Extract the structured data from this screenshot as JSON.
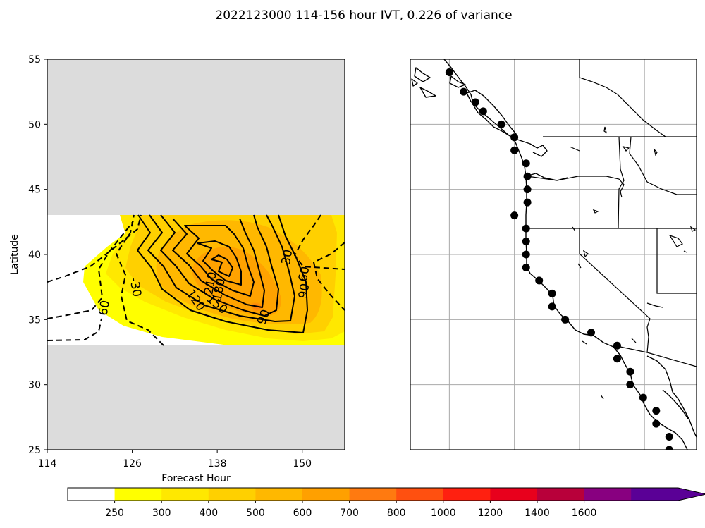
{
  "figure": {
    "title": "2022123000 114-156 hour IVT, 0.226 of variance"
  },
  "chart_data": [
    {
      "type": "heatmap",
      "title": "",
      "xlabel": "Forecast Hour",
      "ylabel": "Latitude",
      "xlim": [
        114,
        156
      ],
      "ylim": [
        25,
        55
      ],
      "xticks": [
        114,
        126,
        138,
        150
      ],
      "yticks": [
        25,
        30,
        35,
        40,
        45,
        50,
        55
      ],
      "masked_lat_ranges": [
        [
          25,
          33
        ],
        [
          43,
          55
        ]
      ],
      "contour_labels": [
        {
          "text": "60",
          "x": 122,
          "y": 35.9,
          "rotate": -80
        },
        {
          "text": "-30",
          "x": 126.5,
          "y": 37.5,
          "rotate": 80
        },
        {
          "text": "30",
          "x": 147.8,
          "y": 39.8,
          "rotate": -80
        },
        {
          "text": "60",
          "x": 150.2,
          "y": 38.5,
          "rotate": -80
        },
        {
          "text": "90",
          "x": 150.2,
          "y": 37.2,
          "rotate": -80
        },
        {
          "text": "120",
          "x": 135,
          "y": 36.5,
          "rotate": 55
        },
        {
          "text": "150",
          "x": 138,
          "y": 36.2,
          "rotate": 40
        },
        {
          "text": "180",
          "x": 138.2,
          "y": 37.3,
          "rotate": -80
        },
        {
          "text": "210",
          "x": 137,
          "y": 37.8,
          "rotate": -80
        },
        {
          "text": "90",
          "x": 144.5,
          "y": 35.2,
          "rotate": -70
        }
      ]
    },
    {
      "type": "map",
      "extent": {
        "lon": [
          -140,
          -118
        ],
        "lat": [
          25,
          55
        ]
      },
      "gridlines": {
        "lon": [
          -137,
          -132,
          -127,
          -122
        ],
        "lat": [
          30,
          35,
          40,
          45,
          50
        ]
      },
      "points": [
        [
          -137.0,
          54.0
        ],
        [
          -135.9,
          52.5
        ],
        [
          -135.0,
          51.7
        ],
        [
          -134.4,
          51.0
        ],
        [
          -133.0,
          50.0
        ],
        [
          -132.0,
          49.0
        ],
        [
          -132.0,
          48.0
        ],
        [
          -131.1,
          47.0
        ],
        [
          -131.0,
          46.0
        ],
        [
          -131.0,
          45.0
        ],
        [
          -131.0,
          44.0
        ],
        [
          -132.0,
          43.0
        ],
        [
          -131.1,
          42.0
        ],
        [
          -131.1,
          41.0
        ],
        [
          -131.1,
          40.0
        ],
        [
          -131.1,
          39.0
        ],
        [
          -130.1,
          38.0
        ],
        [
          -129.1,
          37.0
        ],
        [
          -129.1,
          36.0
        ],
        [
          -128.1,
          35.0
        ],
        [
          -126.1,
          34.0
        ],
        [
          -124.1,
          33.0
        ],
        [
          -124.1,
          32.0
        ],
        [
          -123.1,
          31.0
        ],
        [
          -123.1,
          30.0
        ],
        [
          -122.1,
          29.0
        ],
        [
          -121.1,
          28.0
        ],
        [
          -121.1,
          27.0
        ],
        [
          -120.1,
          26.0
        ],
        [
          -120.1,
          25.0
        ]
      ]
    }
  ],
  "colorbar": {
    "ticks": [
      "250",
      "300",
      "400",
      "500",
      "600",
      "700",
      "800",
      "1000",
      "1200",
      "1400",
      "1600"
    ],
    "colors": [
      "#ffffff",
      "#ffff00",
      "#ffe800",
      "#ffd000",
      "#ffb800",
      "#ffa000",
      "#ff7a10",
      "#ff5010",
      "#ff2010",
      "#e8001c",
      "#b8003a",
      "#880080",
      "#5a0096"
    ]
  }
}
